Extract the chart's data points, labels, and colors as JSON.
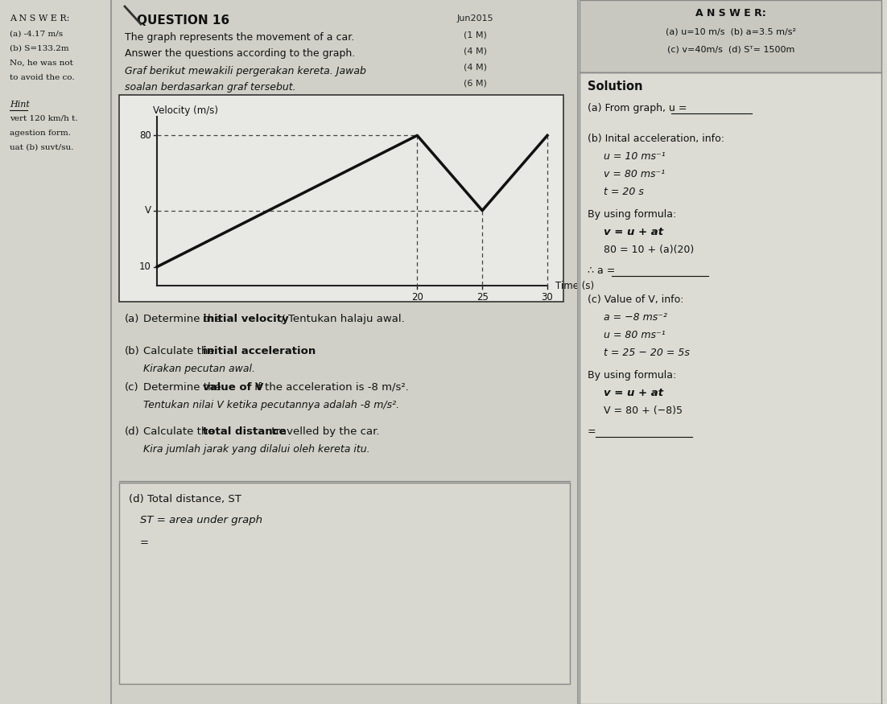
{
  "fig_width": 11.02,
  "fig_height": 8.75,
  "bg_color": "#c8c8c0",
  "left_panel_bg": "#d4d4cc",
  "mid_panel_bg": "#d0d0c8",
  "right_panel_bg": "#d8d8d0",
  "graph_points_x": [
    0,
    20,
    25,
    30
  ],
  "graph_points_y": [
    10,
    80,
    40,
    80
  ],
  "graph_yticks": [
    10,
    40,
    80
  ],
  "graph_ytick_labels": [
    "10",
    "V",
    "80"
  ],
  "graph_xticks": [
    20,
    25,
    30
  ],
  "graph_ylabel": "Velocity (m/s)",
  "graph_xlabel": "Time (s)",
  "left_lines": [
    [
      "A N S W E R:",
      false
    ],
    [
      "(a) -4.17 m/s",
      false
    ],
    [
      "(b) S=133.2m",
      false
    ],
    [
      "No, he was not",
      false
    ],
    [
      "to avoid the co.",
      false
    ],
    [
      "",
      false
    ],
    [
      "Hint",
      true
    ],
    [
      "vert 120 km/h t.",
      false
    ],
    [
      "agestion form.",
      false
    ],
    [
      "uat (b) suvt/su.",
      false
    ]
  ],
  "question_title": "QUESTION 16",
  "jun2015": "Jun2015",
  "marks": [
    "(1 M)",
    "(4 M)",
    "(4 M)",
    "(6 M)"
  ],
  "desc_lines_normal": [
    "The graph represents the movement of a car.",
    "Answer the questions according to the graph."
  ],
  "desc_lines_italic": [
    "Graf berikut mewakili pergerakan kereta. Jawab",
    "soalan berdasarkan graf tersebut."
  ],
  "qa_label": "(a)",
  "qa_text_pre": "Determine the ",
  "qa_text_bold": "initial velocity",
  "qa_text_post": " / Tentukan halaju awal.",
  "qb_label": "(b)",
  "qb_text_pre": "Calculate the ",
  "qb_text_bold": "initial acceleration",
  "qb_text_post": ".",
  "qb_text2": "Kirakan pecutan awal.",
  "qc_label": "(c)",
  "qc_text_pre": "Determine the ",
  "qc_text_bold": "value of V",
  "qc_text_post": " if the acceleration is -8 m/s².",
  "qc_text2": "Tentukan nilai V ketika pecutannya adalah -8 m/s².",
  "qd_label": "(d)",
  "qd_text_pre": "Calculate the ",
  "qd_text_bold": "total distance",
  "qd_text_post": " travelled by the car.",
  "qd_text2": "Kira jumlah jarak yang dilalui oleh kereta itu.",
  "workings_title": "(d) Total distance, S",
  "workings_T": "T",
  "workings_line1_a": "S",
  "workings_line1_b": "T",
  "workings_line1_c": " = area under graph",
  "workings_eq": "=",
  "ans_header": "A N S W E R:",
  "ans_line1": "(a) u=10 m/s  (b) a=3.5 m/s²",
  "ans_line2": "(c) v=40m/s  (d) Sᵀ= 1500m",
  "sol_title": "Solution",
  "sol_a": "(a) From graph, u = ",
  "sol_b_hdr": "(b) Inital acceleration, info:",
  "sol_b_u": "u = 10 ms⁻¹",
  "sol_b_v": "v = 80 ms⁻¹",
  "sol_b_t": "t = 20 s",
  "sol_b_formula": "By using formula:",
  "sol_b_eq1": "v = u + at",
  "sol_b_eq2": "80 = 10 + (a)(20)",
  "sol_b_ans": "∴ a = ",
  "sol_c_hdr": "(c) Value of V, info:",
  "sol_c_a": "a = −8 ms⁻²",
  "sol_c_u": "u = 80 ms⁻¹",
  "sol_c_t": "t = 25 − 20 = 5s",
  "sol_c_formula": "By using formula:",
  "sol_c_eq1": "v = u + at",
  "sol_c_eq2": "V = 80 + (−8)5",
  "sol_c_ans": "= "
}
